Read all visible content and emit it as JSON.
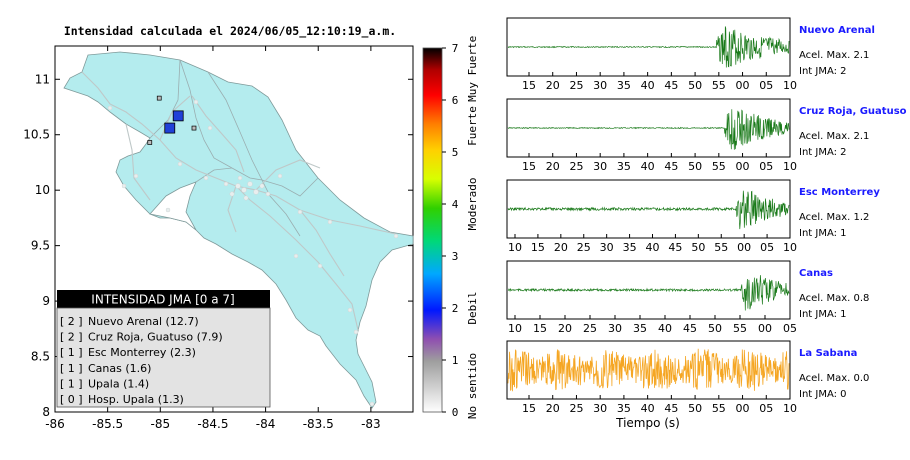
{
  "map": {
    "title": "Intensidad calculada el 2024/06/05_12:10:19_a.m.",
    "x_ticks": [
      "-86",
      "-85.5",
      "-85",
      "-84.5",
      "-84",
      "-83.5",
      "-83"
    ],
    "y_ticks": [
      "11",
      "10.5",
      "10",
      "9.5",
      "9",
      "8.5",
      "8"
    ],
    "xlim": [
      -86,
      -82.6
    ],
    "ylim": [
      8,
      11.3
    ],
    "legend_title": "INTENSIDAD JMA [0 a 7]",
    "legend_entries": [
      {
        "intensity": "[ 2 ]",
        "name": "Nuevo Arenal (12.7)"
      },
      {
        "intensity": "[ 2 ]",
        "name": "Cruz Roja, Guatuso (7.9)"
      },
      {
        "intensity": "[ 1 ]",
        "name": "Esc Monterrey (2.3)"
      },
      {
        "intensity": "[ 1 ]",
        "name": "Canas (1.6)"
      },
      {
        "intensity": "[ 1 ]",
        "name": "Upala (1.4)"
      },
      {
        "intensity": "[ 0 ]",
        "name": "Hosp. Upala (1.3)"
      }
    ],
    "stations": [
      {
        "lon": -84.83,
        "lat": 10.67,
        "intensity": 2
      },
      {
        "lon": -84.91,
        "lat": 10.56,
        "intensity": 2
      },
      {
        "lon": -85.01,
        "lat": 10.83,
        "intensity": 1
      },
      {
        "lon": -84.68,
        "lat": 10.56,
        "intensity": 1
      },
      {
        "lon": -85.1,
        "lat": 10.43,
        "intensity": 1
      }
    ],
    "land_color": "#b4ecee",
    "strong_color": "#2040d8"
  },
  "colorbar": {
    "ticks": [
      "0",
      "1",
      "2",
      "3",
      "4",
      "5",
      "6",
      "7"
    ],
    "labels": [
      "No sentido",
      "Debil",
      "Moderado",
      "Fuerte",
      "Muy Fuerte"
    ]
  },
  "chart_data": {
    "type": "line",
    "xlabel": "Tiempo (s)",
    "series": [
      {
        "name": "Nuevo Arenal",
        "accel_label": "Acel. Max. 2.1",
        "int_label": "Int JMA: 2",
        "ticks": [
          "15",
          "20",
          "25",
          "30",
          "35",
          "40",
          "45",
          "50",
          "55",
          "00",
          "05",
          "10"
        ],
        "onset": 0.74,
        "noise": 0.02,
        "amp": 1.0,
        "color": "#1a7a1a"
      },
      {
        "name": "Cruz Roja, Guatuso",
        "accel_label": "Acel. Max. 2.1",
        "int_label": "Int JMA: 2",
        "ticks": [
          "15",
          "20",
          "25",
          "30",
          "35",
          "40",
          "45",
          "50",
          "55",
          "00",
          "05",
          "10"
        ],
        "onset": 0.77,
        "noise": 0.02,
        "amp": 1.0,
        "color": "#1a7a1a"
      },
      {
        "name": "Esc Monterrey",
        "accel_label": "Acel. Max. 1.2",
        "int_label": "Int JMA: 1",
        "ticks": [
          "10",
          "15",
          "20",
          "25",
          "30",
          "35",
          "40",
          "45",
          "50",
          "55",
          "00",
          "05",
          "10"
        ],
        "onset": 0.81,
        "noise": 0.05,
        "amp": 1.0,
        "color": "#1a7a1a"
      },
      {
        "name": "Canas",
        "accel_label": "Acel. Max. 0.8",
        "int_label": "Int JMA: 1",
        "ticks": [
          "10",
          "15",
          "20",
          "25",
          "30",
          "35",
          "40",
          "45",
          "50",
          "55",
          "00",
          "05"
        ],
        "onset": 0.83,
        "noise": 0.04,
        "amp": 1.0,
        "color": "#1a7a1a"
      },
      {
        "name": "La Sabana",
        "accel_label": "Acel. Max. 0.0",
        "int_label": "Int JMA: 0",
        "ticks": [
          "15",
          "20",
          "25",
          "30",
          "35",
          "40",
          "45",
          "50",
          "55",
          "00",
          "05",
          "10"
        ],
        "onset": 0.0,
        "noise": 0.8,
        "amp": 0.8,
        "color": "#f5a623"
      }
    ]
  }
}
